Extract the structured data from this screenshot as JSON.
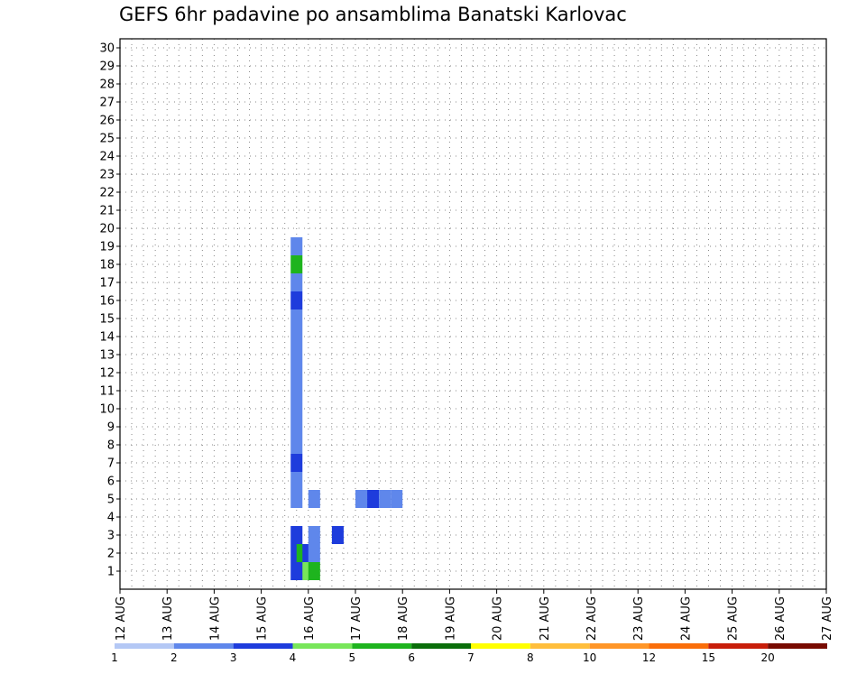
{
  "chart_data": {
    "type": "heatmap",
    "title": "GEFS 6hr padavine po ansamblima Banatski Karlovac",
    "xlabel": "",
    "ylabel": "",
    "x_ticks": [
      "12 AUG",
      "13 AUG",
      "14 AUG",
      "15 AUG",
      "16 AUG",
      "17 AUG",
      "18 AUG",
      "19 AUG",
      "20 AUG",
      "21 AUG",
      "22 AUG",
      "23 AUG",
      "24 AUG",
      "25 AUG",
      "26 AUG",
      "27 AUG"
    ],
    "y_ticks": [
      1,
      2,
      3,
      4,
      5,
      6,
      7,
      8,
      9,
      10,
      11,
      12,
      13,
      14,
      15,
      16,
      17,
      18,
      19,
      20,
      21,
      22,
      23,
      24,
      25,
      26,
      27,
      28,
      29,
      30
    ],
    "x_unit": "6hr step",
    "xlim": [
      0,
      60
    ],
    "ylim": [
      0,
      30.5
    ],
    "grid": true,
    "legend_position": "bottom",
    "colorbar": {
      "labels": [
        "1",
        "2",
        "3",
        "4",
        "5",
        "6",
        "7",
        "8",
        "10",
        "12",
        "15",
        "20"
      ],
      "colors": [
        "#b4c8f5",
        "#5f87eb",
        "#1e3cdc",
        "#78e65a",
        "#1eb41e",
        "#0a6e0a",
        "#ffff00",
        "#ffbe3c",
        "#ff9628",
        "#fa6e0a",
        "#c81e0a",
        "#780a00"
      ]
    },
    "cells": [
      [
        14.5,
        1,
        2
      ],
      [
        15,
        1,
        2
      ],
      [
        15.5,
        1,
        3
      ],
      [
        16,
        1,
        4
      ],
      [
        14.5,
        2,
        2
      ],
      [
        15,
        2,
        4
      ],
      [
        15.5,
        2,
        2
      ],
      [
        16,
        2,
        1
      ],
      [
        14.5,
        3,
        2
      ],
      [
        16,
        3,
        1
      ],
      [
        18,
        3,
        2
      ],
      [
        14.5,
        5,
        1
      ],
      [
        16,
        5,
        1
      ],
      [
        20,
        5,
        1
      ],
      [
        21,
        5,
        2
      ],
      [
        22,
        5,
        1
      ],
      [
        23,
        5,
        1
      ],
      [
        14.5,
        6,
        1
      ],
      [
        14.5,
        7,
        2
      ],
      [
        14.5,
        8,
        1
      ],
      [
        14.5,
        9,
        1
      ],
      [
        14.5,
        10,
        1
      ],
      [
        14.5,
        11,
        1
      ],
      [
        14.5,
        12,
        1
      ],
      [
        14.5,
        13,
        1
      ],
      [
        14.5,
        14,
        1
      ],
      [
        14.5,
        15,
        1
      ],
      [
        14.5,
        16,
        2
      ],
      [
        14.5,
        17,
        1
      ],
      [
        14.5,
        18,
        4
      ],
      [
        14.5,
        19,
        1
      ]
    ]
  }
}
